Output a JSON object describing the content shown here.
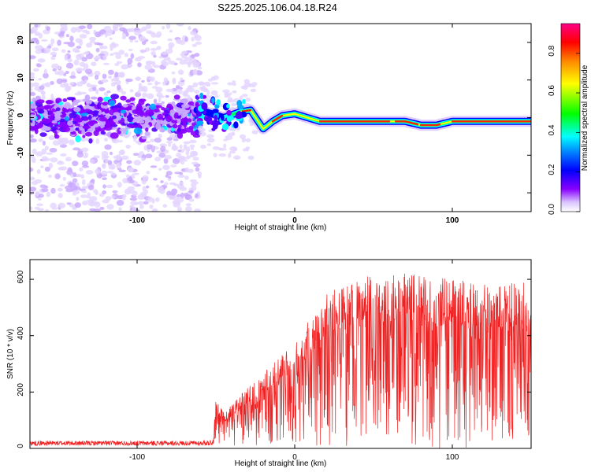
{
  "title": "S225.2025.106.04.18.R24",
  "chart_data": [
    {
      "type": "heatmap",
      "xlabel": "Height of straight line (km)",
      "ylabel": "Frequency (Hz)",
      "xlim": [
        -168,
        150
      ],
      "ylim": [
        -25,
        25
      ],
      "xticks": [
        -100,
        0,
        100
      ],
      "yticks": [
        -20,
        -10,
        0,
        10,
        20
      ],
      "colorbar": {
        "label": "Normalized spectral amplitude",
        "range": [
          0,
          0.95
        ],
        "ticks": [
          "0.0",
          "0.2",
          "0.4",
          "0.6",
          "0.8"
        ],
        "tick_values": [
          0,
          0.2,
          0.4,
          0.6,
          0.8
        ],
        "colors": [
          "#ffffff",
          "#e8d8ff",
          "#8800ff",
          "#0000ff",
          "#00ffff",
          "#00ff00",
          "#ffff00",
          "#ff8800",
          "#ff0000",
          "#ff0088"
        ]
      },
      "ridge": {
        "description_points_x": [
          -60,
          -45,
          -35,
          -28,
          -20,
          -14,
          -8,
          0,
          8,
          16,
          40,
          70,
          80,
          90,
          100,
          120,
          150
        ],
        "description_points_y": [
          2,
          0,
          1.5,
          2,
          -3,
          -1,
          0.5,
          1,
          0,
          -1,
          -1,
          -1,
          -2,
          -2,
          -1,
          -1,
          -1
        ]
      }
    },
    {
      "type": "line",
      "xlabel": "Height of straight line (km)",
      "ylabel": "SNR (10 * v/v)",
      "xlim": [
        -168,
        150
      ],
      "ylim": [
        0,
        670
      ],
      "xticks": [
        -100,
        0,
        100
      ],
      "yticks": [
        0,
        200,
        400,
        600
      ],
      "color": "#ee2222",
      "envelope_x": [
        -168,
        -60,
        -52,
        -50,
        -45,
        -35,
        -25,
        -15,
        -5,
        0,
        10,
        20,
        30,
        40,
        60,
        80,
        100,
        120,
        150
      ],
      "envelope_y": [
        25,
        25,
        30,
        180,
        120,
        180,
        230,
        280,
        330,
        360,
        440,
        520,
        560,
        580,
        600,
        590,
        575,
        560,
        560
      ]
    }
  ]
}
